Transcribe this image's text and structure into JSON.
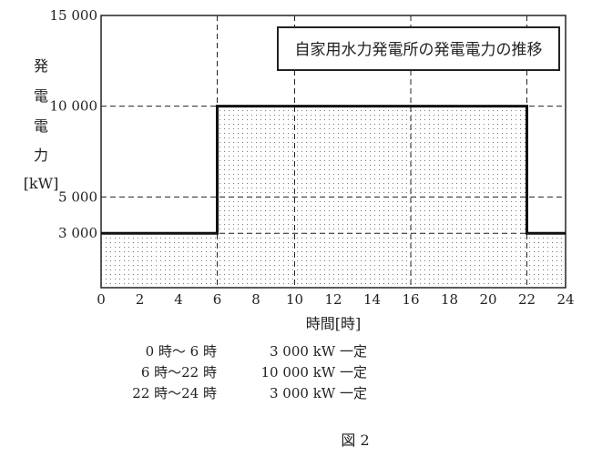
{
  "chart_data": {
    "type": "area",
    "title": "自家用水力発電所の発電電力の推移",
    "ylabel_chars": [
      "発",
      "電",
      "電",
      "力"
    ],
    "ylabel_unit": "[kW]",
    "xlabel": "時間[時]",
    "xlim": [
      0,
      24
    ],
    "ylim": [
      0,
      15000
    ],
    "xticks": [
      0,
      2,
      4,
      6,
      8,
      10,
      12,
      14,
      16,
      18,
      20,
      22,
      24
    ],
    "yticks": [
      3000,
      5000,
      10000,
      15000
    ],
    "ytick_labels": [
      "3 000",
      "5 000",
      "10 000",
      "15 000"
    ],
    "v_gridlines": [
      6,
      10,
      16,
      22
    ],
    "h_gridlines": [
      3000,
      5000,
      10000
    ],
    "series": [
      {
        "x": [
          0,
          6,
          6,
          22,
          22,
          24
        ],
        "y": [
          3000,
          3000,
          10000,
          10000,
          3000,
          3000
        ]
      }
    ],
    "fill": "dotted"
  },
  "schedule": [
    {
      "period": "0 時～ 6 時",
      "value": "3 000 kW 一定"
    },
    {
      "period": "6 時～22 時",
      "value": "10 000 kW 一定"
    },
    {
      "period": "22 時～24 時",
      "value": "3 000 kW 一定"
    }
  ],
  "figure_label": "図 2"
}
